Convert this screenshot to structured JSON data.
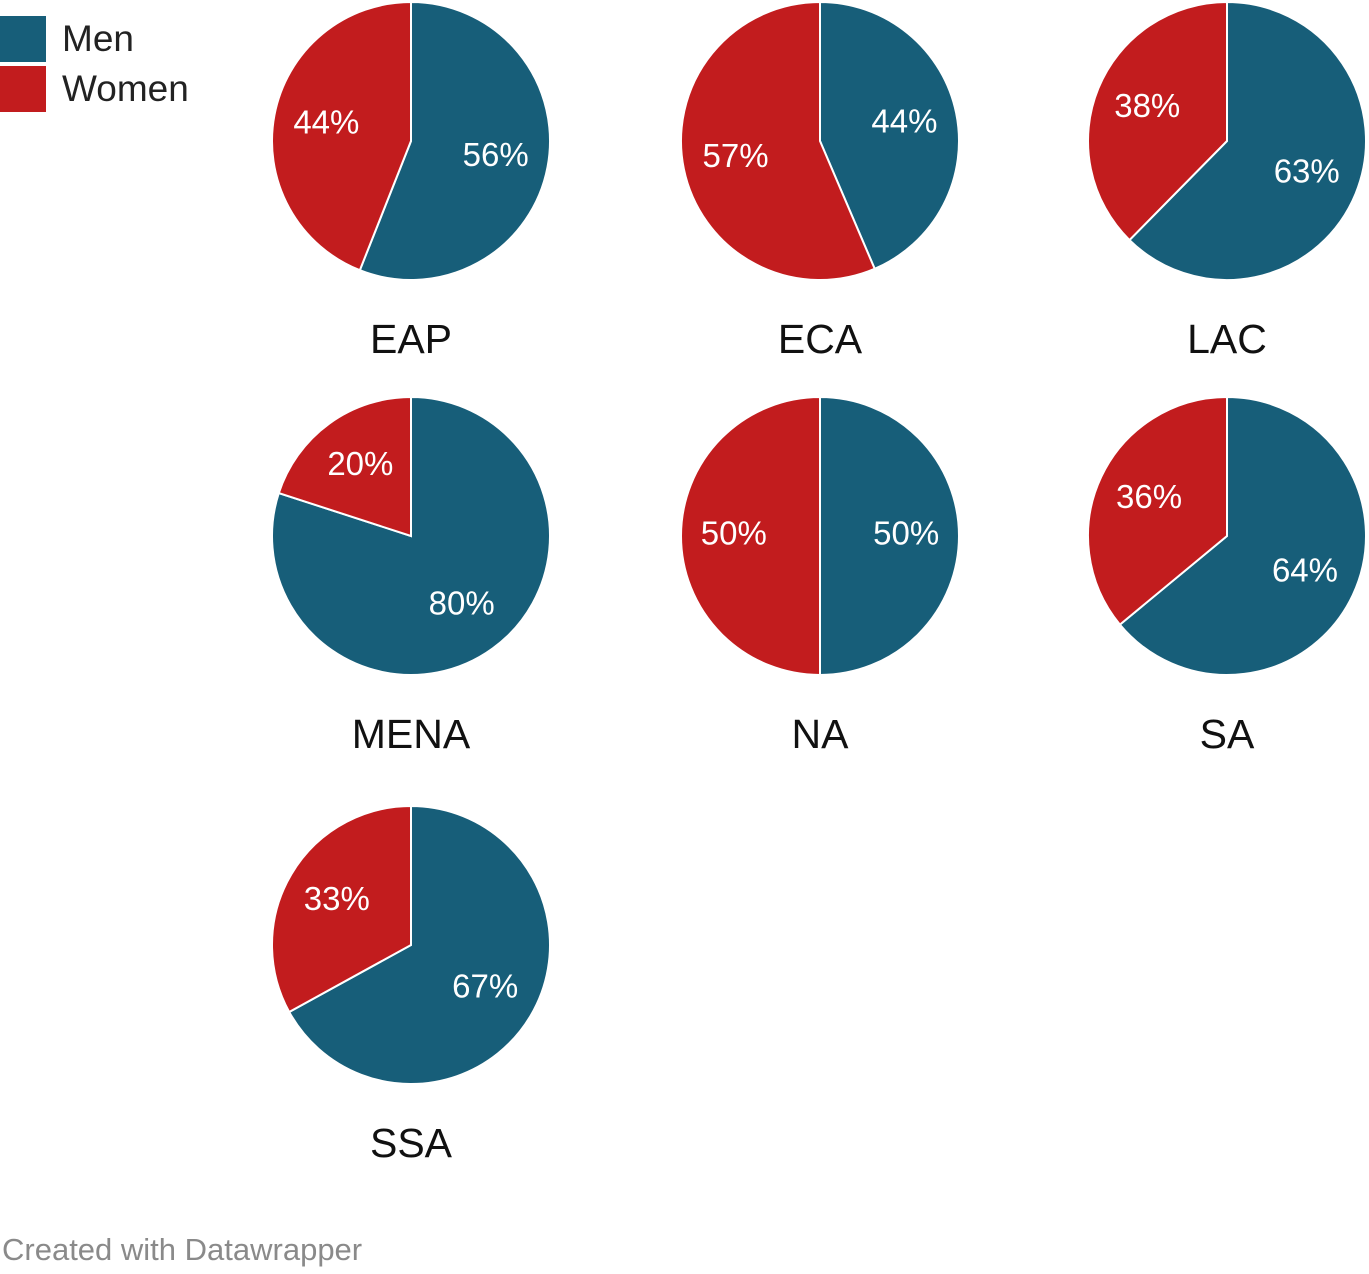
{
  "legend": {
    "items": [
      {
        "label": "Men",
        "color": "#175e79"
      },
      {
        "label": "Women",
        "color": "#c21c1e"
      }
    ]
  },
  "credit": "Created with Datawrapper",
  "chart_data": {
    "type": "pie",
    "series_names": [
      "Men",
      "Women"
    ],
    "colors": {
      "Men": "#175e79",
      "Women": "#c21c1e"
    },
    "pies": [
      {
        "region": "EAP",
        "men": 56,
        "women": 44
      },
      {
        "region": "ECA",
        "men": 44,
        "women": 57
      },
      {
        "region": "LAC",
        "men": 63,
        "women": 38
      },
      {
        "region": "MENA",
        "men": 80,
        "women": 20
      },
      {
        "region": "NA",
        "men": 50,
        "women": 50
      },
      {
        "region": "SA",
        "men": 64,
        "women": 36
      },
      {
        "region": "SSA",
        "men": 67,
        "women": 33
      }
    ]
  }
}
